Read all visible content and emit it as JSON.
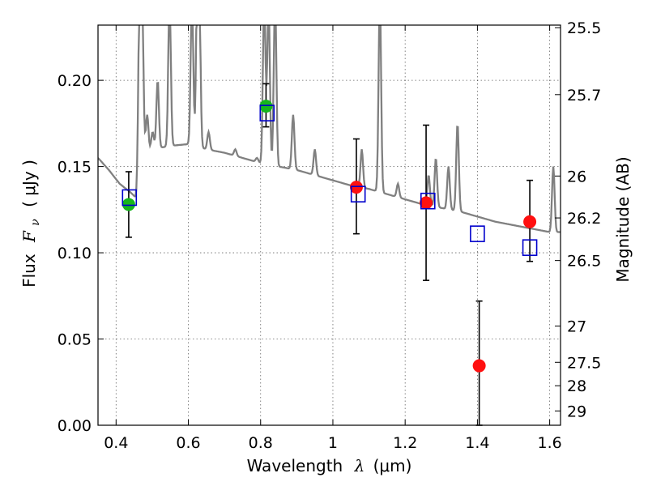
{
  "chart_data": {
    "type": "scatter",
    "xlabel": "Wavelength",
    "xlabel_symbol": "λ",
    "xlabel_unit": "(μm)",
    "ylabel": "Flux",
    "ylabel_symbol": "F",
    "ylabel_subscript": "ν",
    "ylabel_unit": "( μJy )",
    "y2label": "Magnitude (AB)",
    "xlim": [
      0.35,
      1.63
    ],
    "ylim": [
      0.0,
      0.232
    ],
    "grid": true,
    "x_ticks": [
      {
        "value": 0.4,
        "label": "0.4"
      },
      {
        "value": 0.6,
        "label": "0.6"
      },
      {
        "value": 0.8,
        "label": "0.8"
      },
      {
        "value": 1.0,
        "label": "1"
      },
      {
        "value": 1.2,
        "label": "1.2"
      },
      {
        "value": 1.4,
        "label": "1.4"
      },
      {
        "value": 1.6,
        "label": "1.6"
      }
    ],
    "y_ticks": [
      {
        "value": 0.0,
        "label": "0.00"
      },
      {
        "value": 0.05,
        "label": "0.05"
      },
      {
        "value": 0.1,
        "label": "0.10"
      },
      {
        "value": 0.15,
        "label": "0.15"
      },
      {
        "value": 0.2,
        "label": "0.20"
      }
    ],
    "y2_ticks": [
      {
        "flux": 0.2305,
        "label": "25.5"
      },
      {
        "flux": 0.1917,
        "label": "25.7"
      },
      {
        "flux": 0.1445,
        "label": "26"
      },
      {
        "flux": 0.1202,
        "label": "26.2"
      },
      {
        "flux": 0.0955,
        "label": "26.5"
      },
      {
        "flux": 0.0575,
        "label": "27"
      },
      {
        "flux": 0.0365,
        "label": "27.5"
      },
      {
        "flux": 0.0229,
        "label": "28"
      },
      {
        "flux": 0.0083,
        "label": "29"
      }
    ],
    "series": [
      {
        "name": "model spectrum",
        "style": "line",
        "color": "#808080",
        "continuum": [
          [
            0.35,
            0.155
          ],
          [
            0.38,
            0.148
          ],
          [
            0.41,
            0.14
          ],
          [
            0.44,
            0.135
          ],
          [
            0.455,
            0.132
          ],
          [
            0.465,
            0.145
          ],
          [
            0.48,
            0.158
          ],
          [
            0.5,
            0.16
          ],
          [
            0.55,
            0.162
          ],
          [
            0.6,
            0.163
          ],
          [
            0.65,
            0.16
          ],
          [
            0.7,
            0.158
          ],
          [
            0.75,
            0.155
          ],
          [
            0.8,
            0.152
          ],
          [
            0.85,
            0.15
          ],
          [
            0.9,
            0.148
          ],
          [
            0.95,
            0.145
          ],
          [
            1.0,
            0.142
          ],
          [
            1.05,
            0.139
          ],
          [
            1.1,
            0.137
          ],
          [
            1.15,
            0.134
          ],
          [
            1.2,
            0.131
          ],
          [
            1.25,
            0.128
          ],
          [
            1.3,
            0.126
          ],
          [
            1.35,
            0.124
          ],
          [
            1.4,
            0.121
          ],
          [
            1.45,
            0.118
          ],
          [
            1.5,
            0.116
          ],
          [
            1.55,
            0.114
          ],
          [
            1.6,
            0.112
          ],
          [
            1.63,
            0.112
          ]
        ],
        "emission_lines": [
          [
            0.465,
            0.25
          ],
          [
            0.472,
            0.25
          ],
          [
            0.486,
            0.18
          ],
          [
            0.501,
            0.17
          ],
          [
            0.515,
            0.2
          ],
          [
            0.548,
            0.25
          ],
          [
            0.61,
            0.25
          ],
          [
            0.625,
            0.25
          ],
          [
            0.63,
            0.25
          ],
          [
            0.656,
            0.17
          ],
          [
            0.73,
            0.16
          ],
          [
            0.79,
            0.155
          ],
          [
            0.81,
            0.25
          ],
          [
            0.822,
            0.25
          ],
          [
            0.84,
            0.25
          ],
          [
            0.89,
            0.18
          ],
          [
            0.95,
            0.16
          ],
          [
            1.08,
            0.16
          ],
          [
            1.13,
            0.25
          ],
          [
            1.18,
            0.14
          ],
          [
            1.265,
            0.145
          ],
          [
            1.285,
            0.155
          ],
          [
            1.32,
            0.15
          ],
          [
            1.345,
            0.175
          ],
          [
            1.61,
            0.15
          ]
        ]
      },
      {
        "name": "green points",
        "style": "marker",
        "marker": "circle",
        "color": "#16b61c",
        "points": [
          {
            "x": 0.435,
            "y": 0.128,
            "err_lo": 0.109,
            "err_hi": 0.147
          },
          {
            "x": 0.815,
            "y": 0.185,
            "err_lo": 0.173,
            "err_hi": 0.198
          }
        ]
      },
      {
        "name": "red points",
        "style": "marker",
        "marker": "circle",
        "color": "#ff1010",
        "points": [
          {
            "x": 1.065,
            "y": 0.138,
            "err_lo": 0.111,
            "err_hi": 0.166
          },
          {
            "x": 1.258,
            "y": 0.129,
            "err_lo": 0.084,
            "err_hi": 0.174
          },
          {
            "x": 1.405,
            "y": 0.0345,
            "err_lo": 0.0,
            "err_hi": 0.072
          },
          {
            "x": 1.545,
            "y": 0.118,
            "err_lo": 0.095,
            "err_hi": 0.142
          }
        ]
      },
      {
        "name": "model photometry",
        "style": "marker",
        "marker": "square",
        "color": "#0000cc",
        "points": [
          {
            "x": 0.437,
            "y": 0.132
          },
          {
            "x": 0.818,
            "y": 0.181
          },
          {
            "x": 1.07,
            "y": 0.134
          },
          {
            "x": 1.263,
            "y": 0.13
          },
          {
            "x": 1.4,
            "y": 0.111
          },
          {
            "x": 1.545,
            "y": 0.103
          }
        ]
      }
    ]
  }
}
